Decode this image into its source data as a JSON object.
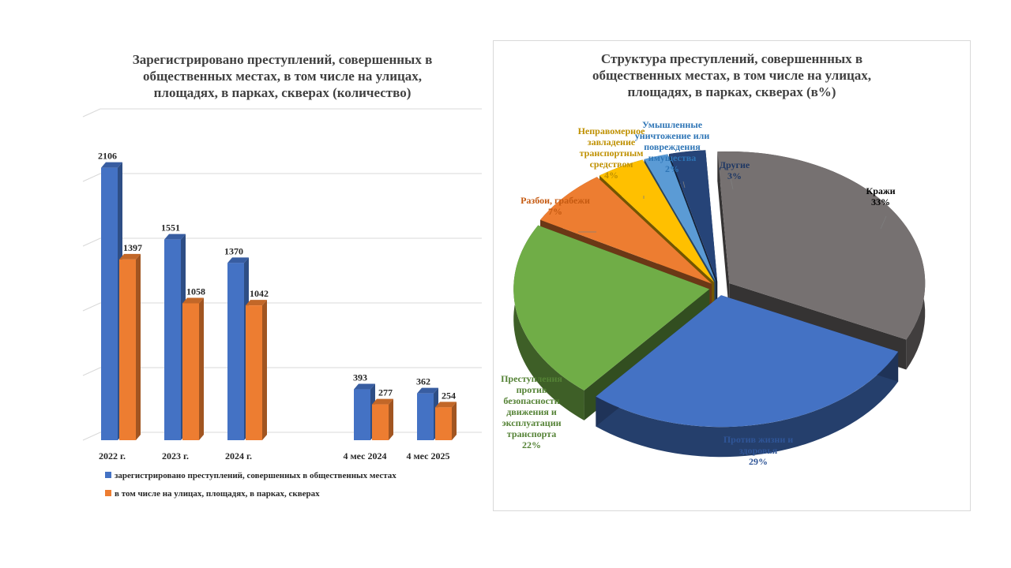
{
  "chart_data": [
    {
      "type": "bar",
      "title_lines": [
        "Зарегистрировано преступлений, совершенных в",
        "общественных местах, в том числе на улицах,",
        "площадях, в парках, скверах (количество)"
      ],
      "categories": [
        "2022 г.",
        "2023 г.",
        "2024 г.",
        "4 мес 2024",
        "4 мес 2025"
      ],
      "series": [
        {
          "name": "зарегистрировано  преступлений,  совершенных  в общественных  местах",
          "values": [
            2106,
            1551,
            1370,
            393,
            362
          ],
          "color": "#4472c4"
        },
        {
          "name": "в том числе  на  улицах,  площадях,  в  парках,  скверах",
          "values": [
            1397,
            1058,
            1042,
            277,
            254
          ],
          "color": "#ed7d31"
        }
      ],
      "ylim": [
        0,
        2500
      ],
      "grid": true,
      "legend_position": "bottom"
    },
    {
      "type": "pie",
      "title_lines": [
        "Структура преступлений, совершеннных в",
        "общественных местах, в том числе на улицах,",
        "площадях, в парках, скверах (в%)"
      ],
      "slices": [
        {
          "label_lines": [
            "Кражи"
          ],
          "value": 33,
          "value_label": "33%",
          "color": "#767171",
          "label_color": "#000000"
        },
        {
          "label_lines": [
            "Против  жизни и",
            "здоровья"
          ],
          "value": 29,
          "value_label": "29%",
          "color": "#4472c4",
          "label_color": "#2f5597"
        },
        {
          "label_lines": [
            "Преступления",
            "против",
            "безопасности",
            "движения и",
            "эксплуатации",
            "транспорта"
          ],
          "value": 22,
          "value_label": "22%",
          "color": "#70ad47",
          "label_color": "#548235"
        },
        {
          "label_lines": [
            "Разбои,  грабежи"
          ],
          "value": 7,
          "value_label": "7%",
          "color": "#ed7d31",
          "label_color": "#c55a11"
        },
        {
          "label_lines": [
            "Неправомерное",
            "завладение",
            "транспортным",
            "средством"
          ],
          "value": 4,
          "value_label": "4%",
          "color": "#ffc000",
          "label_color": "#bf9000"
        },
        {
          "label_lines": [
            "Умышленные",
            "уничтожение  или",
            "повреждения",
            "имущества"
          ],
          "value": 2,
          "value_label": "2%",
          "color": "#5b9bd5",
          "label_color": "#2e75b6"
        },
        {
          "label_lines": [
            "Другие"
          ],
          "value": 3,
          "value_label": "3%",
          "color": "#264478",
          "label_color": "#1f3864"
        }
      ],
      "legend_position": "none"
    }
  ]
}
